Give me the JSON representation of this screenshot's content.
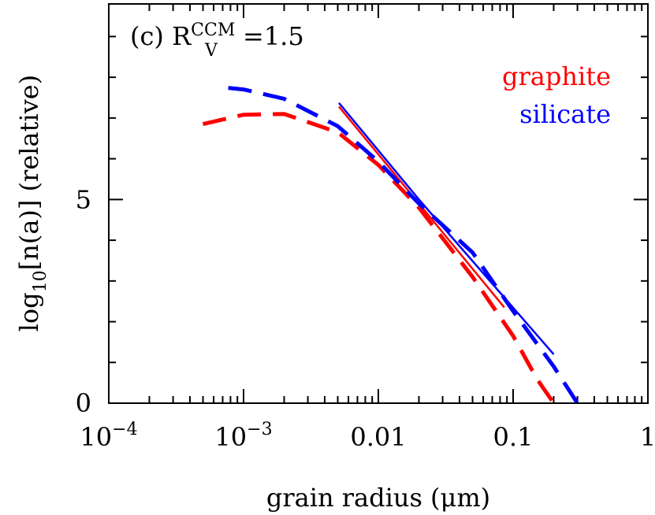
{
  "chart_data": {
    "type": "line",
    "annotation": {
      "prefix": "(c) R",
      "sub": "V",
      "sup": "CCM",
      "suffix": "=1.5"
    },
    "ylabel": {
      "main": "log",
      "sub": "10",
      "rest": "[n(a)] (relative)"
    },
    "xlabel": "grain radius (μm)",
    "xscale": "log",
    "xlim": [
      0.0001,
      1
    ],
    "ylim": [
      0,
      9.8
    ],
    "xticks": [
      {
        "value": 0.0001,
        "label": "10",
        "exponent": "−4"
      },
      {
        "value": 0.001,
        "label": "10",
        "exponent": "−3"
      },
      {
        "value": 0.01,
        "label": "0.01"
      },
      {
        "value": 0.1,
        "label": "0.1"
      },
      {
        "value": 1,
        "label": "1"
      }
    ],
    "xminorticks": [
      0.0002,
      0.0003,
      0.0004,
      0.0005,
      0.0006,
      0.0007,
      0.0008,
      0.0009,
      0.002,
      0.003,
      0.004,
      0.005,
      0.006,
      0.007,
      0.008,
      0.009,
      0.02,
      0.03,
      0.04,
      0.05,
      0.06,
      0.07,
      0.08,
      0.09,
      0.2,
      0.3,
      0.4,
      0.5,
      0.6,
      0.7,
      0.8,
      0.9
    ],
    "yticks": [
      0,
      5
    ],
    "yminorticks": [
      1,
      2,
      3,
      4,
      6,
      7,
      8,
      9
    ],
    "series": [
      {
        "name": "graphite",
        "color": "#ff0000",
        "x": [
          0.0005,
          0.001,
          0.002,
          0.005,
          0.01,
          0.02,
          0.05,
          0.1,
          0.15,
          0.2
        ],
        "values": [
          6.85,
          7.08,
          7.1,
          6.65,
          5.85,
          4.8,
          3.1,
          1.65,
          0.6,
          0
        ],
        "fit": {
          "x": [
            0.0051,
            0.02,
            0.086
          ],
          "values": [
            7.28,
            4.9,
            2.35
          ]
        }
      },
      {
        "name": "silicate",
        "color": "#0000ff",
        "x": [
          0.00077,
          0.001,
          0.002,
          0.005,
          0.01,
          0.02,
          0.05,
          0.1,
          0.2,
          0.3
        ],
        "values": [
          7.74,
          7.7,
          7.47,
          6.8,
          5.93,
          4.9,
          3.7,
          2.26,
          0.9,
          0
        ],
        "fit": {
          "x": [
            0.0051,
            0.02,
            0.2
          ],
          "values": [
            7.37,
            5.0,
            1.2
          ]
        }
      }
    ]
  }
}
